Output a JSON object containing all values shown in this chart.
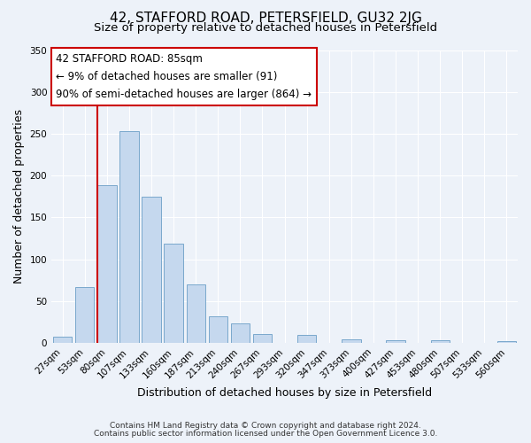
{
  "title": "42, STAFFORD ROAD, PETERSFIELD, GU32 2JG",
  "subtitle": "Size of property relative to detached houses in Petersfield",
  "xlabel": "Distribution of detached houses by size in Petersfield",
  "ylabel": "Number of detached properties",
  "bar_labels": [
    "27sqm",
    "53sqm",
    "80sqm",
    "107sqm",
    "133sqm",
    "160sqm",
    "187sqm",
    "213sqm",
    "240sqm",
    "267sqm",
    "293sqm",
    "320sqm",
    "347sqm",
    "373sqm",
    "400sqm",
    "427sqm",
    "453sqm",
    "480sqm",
    "507sqm",
    "533sqm",
    "560sqm"
  ],
  "bar_values": [
    7,
    67,
    188,
    253,
    175,
    119,
    70,
    32,
    23,
    11,
    0,
    9,
    0,
    4,
    0,
    3,
    0,
    3,
    0,
    0,
    2
  ],
  "bar_color": "#c5d8ee",
  "bar_edge_color": "#7aa8cc",
  "ylim": [
    0,
    350
  ],
  "yticks": [
    0,
    50,
    100,
    150,
    200,
    250,
    300,
    350
  ],
  "vline_color": "#cc0000",
  "annotation_title": "42 STAFFORD ROAD: 85sqm",
  "annotation_line1": "← 9% of detached houses are smaller (91)",
  "annotation_line2": "90% of semi-detached houses are larger (864) →",
  "annotation_box_color": "#ffffff",
  "annotation_box_edge": "#cc0000",
  "footnote1": "Contains HM Land Registry data © Crown copyright and database right 2024.",
  "footnote2": "Contains public sector information licensed under the Open Government Licence 3.0.",
  "bg_color": "#edf2f9",
  "grid_color": "#ffffff",
  "title_fontsize": 11,
  "subtitle_fontsize": 9.5,
  "axis_label_fontsize": 9,
  "tick_fontsize": 7.5,
  "footnote_fontsize": 6.5
}
